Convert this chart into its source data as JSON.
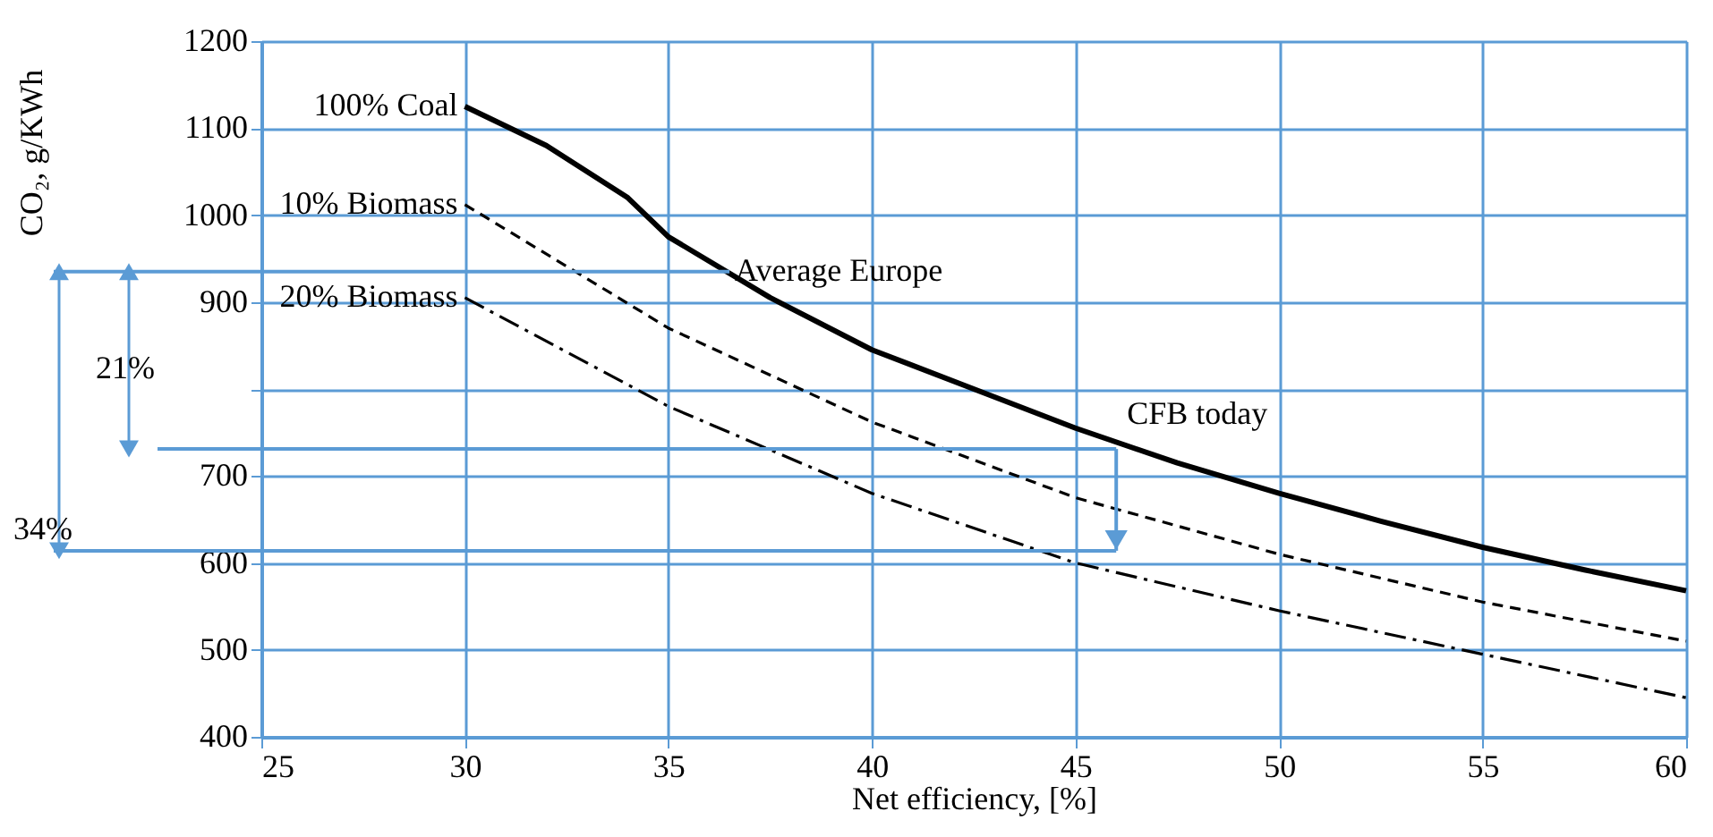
{
  "chart_data": {
    "type": "line",
    "xlabel": "Net efficiency, [%]",
    "ylabel": "CO₂, g/KWh",
    "xlim": [
      25,
      60
    ],
    "xticks": [
      25,
      30,
      35,
      40,
      45,
      50,
      55,
      60
    ],
    "ylim": [
      400,
      1200
    ],
    "yticks": [
      400,
      500,
      600,
      700,
      {
        "value": 800,
        "label": null
      },
      900,
      1000,
      1100,
      1200
    ],
    "grid": true,
    "series": [
      {
        "name": "100% Coal",
        "color": "#000000",
        "line_style": "solid",
        "x": [
          30,
          32,
          34,
          35,
          37.5,
          40,
          42.5,
          45,
          47.5,
          50,
          52.5,
          55,
          57.5,
          60
        ],
        "values": [
          1125,
          1080,
          1020,
          975,
          905,
          845,
          800,
          755,
          715,
          680,
          648,
          618,
          592,
          568
        ]
      },
      {
        "name": "10% Biomass",
        "color": "#000000",
        "line_style": "dashed",
        "x": [
          30,
          35,
          40,
          45,
          50,
          55,
          60
        ],
        "values": [
          1012,
          870,
          762,
          675,
          610,
          555,
          510
        ]
      },
      {
        "name": "20% Biomass",
        "color": "#000000",
        "line_style": "dotted",
        "x": [
          30,
          35,
          40,
          45,
          50,
          55,
          60
        ],
        "values": [
          905,
          780,
          680,
          600,
          545,
          495,
          445
        ]
      }
    ],
    "annotations": [
      {
        "text": "Average Europe",
        "x": 36.5,
        "y": 935
      },
      {
        "text": "CFB today",
        "x": 46,
        "y": 731
      },
      "21%",
      "34%"
    ],
    "ref_lines": [
      {
        "axis": "y",
        "value": 935,
        "color": "#5b9bd5"
      },
      {
        "axis": "y",
        "value": 731,
        "color": "#5b9bd5"
      },
      {
        "axis": "y",
        "value": 614,
        "color": "#5b9bd5"
      }
    ]
  }
}
